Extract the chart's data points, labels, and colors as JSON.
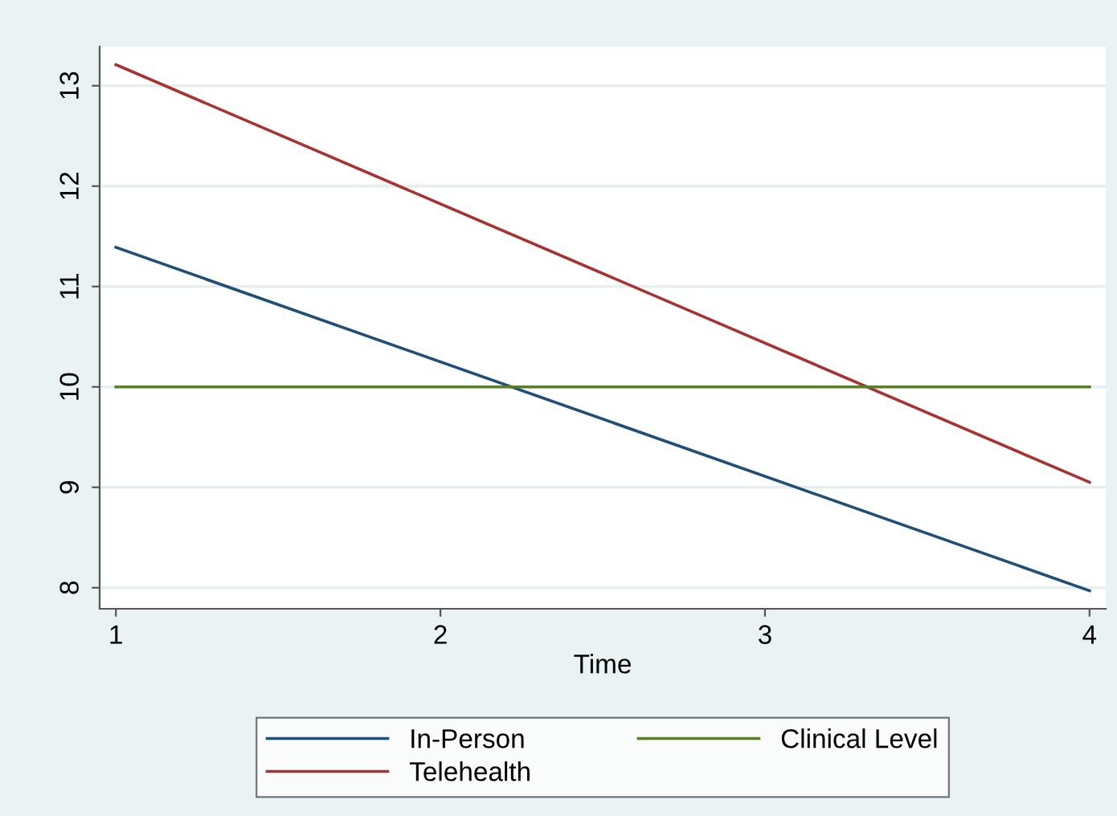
{
  "chart_data": {
    "type": "line",
    "xlabel": "Time",
    "x": [
      1,
      4
    ],
    "series": [
      {
        "name": "In-Person",
        "color": "#1f4e79",
        "values": [
          11.39,
          7.97
        ]
      },
      {
        "name": "Telehealth",
        "color": "#a83232",
        "values": [
          13.21,
          9.05
        ]
      },
      {
        "name": "Clinical Level",
        "color": "#5a7d2a",
        "values": [
          10,
          10
        ]
      }
    ],
    "xlim": [
      0.95,
      4.05
    ],
    "xticks": [
      1,
      2,
      3,
      4
    ],
    "ylim": [
      7.79,
      13.39
    ],
    "yticks": [
      8,
      9,
      10,
      11,
      12,
      13
    ],
    "grid": "y",
    "legend": "bottom",
    "marker": "none",
    "line_style": "solid"
  }
}
